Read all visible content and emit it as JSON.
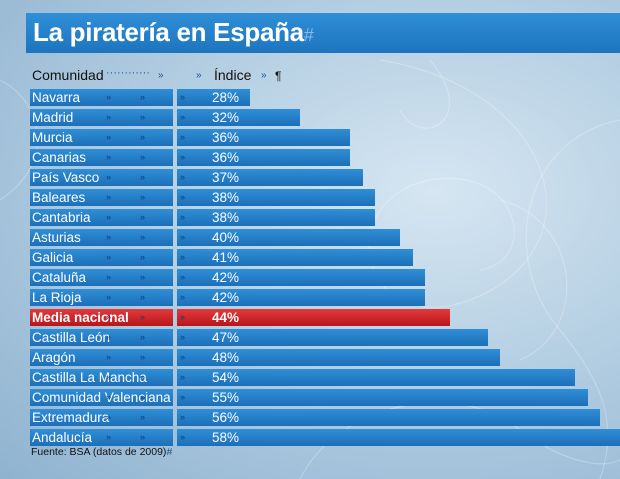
{
  "colors": {
    "bar": "#1f78c4",
    "highlight": "#c8202a",
    "title_bar": "#2585cf"
  },
  "title": "La piratería en España",
  "title_mark": "#",
  "header": {
    "col1": "Comunidad",
    "col2": "Índice",
    "pilcrow": "¶"
  },
  "source": "Fuente: BSA (datos de 2009)",
  "chart_data": {
    "type": "bar",
    "orientation": "horizontal",
    "title": "La piratería en España",
    "categories": [
      "Navarra",
      "Madrid",
      "Murcia",
      "Canarias",
      "País Vasco",
      "Baleares",
      "Cantabria",
      "Asturias",
      "Galicia",
      "Cataluña",
      "La Rioja",
      "Media nacional",
      "Castilla León",
      "Aragón",
      "Castilla La Mancha",
      "Comunidad Valenciana",
      "Extremadura",
      "Andalucía"
    ],
    "values": [
      28,
      32,
      36,
      36,
      37,
      38,
      38,
      40,
      41,
      42,
      42,
      44,
      47,
      48,
      54,
      55,
      56,
      58
    ],
    "labels": [
      "28%",
      "32%",
      "36%",
      "36%",
      "37%",
      "38%",
      "38%",
      "40%",
      "41%",
      "42%",
      "42%",
      "44%",
      "47%",
      "48%",
      "54%",
      "55%",
      "56%",
      "58%"
    ],
    "highlight_category": "Media nacional",
    "unit": "%",
    "grid": false,
    "legend": "none"
  }
}
